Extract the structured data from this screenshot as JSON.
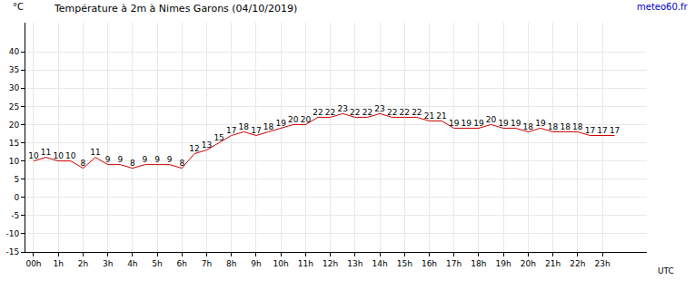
{
  "chart_data": {
    "type": "line",
    "title": "Température à 2m à Nimes Garons (04/10/2019)",
    "y_label": "°C",
    "x_label": "UTC",
    "source": "meteo60.fr",
    "x": [
      0,
      0.5,
      1,
      1.5,
      2,
      2.5,
      3,
      3.5,
      4,
      4.5,
      5,
      5.5,
      6,
      6.5,
      7,
      7.5,
      8,
      8.5,
      9,
      9.5,
      10,
      10.5,
      11,
      11.5,
      12,
      12.5,
      13,
      13.5,
      14,
      14.5,
      15,
      15.5,
      16,
      16.5,
      17,
      17.5,
      18,
      18.5,
      19,
      19.5,
      20,
      20.5,
      21,
      21.5,
      22,
      22.5,
      23,
      23.5
    ],
    "values": [
      10,
      11,
      10,
      10,
      8,
      11,
      9,
      9,
      8,
      9,
      9,
      9,
      8,
      12,
      13,
      15,
      17,
      18,
      17,
      18,
      19,
      20,
      20,
      22,
      22,
      23,
      22,
      22,
      23,
      22,
      22,
      22,
      21,
      21,
      19,
      19,
      19,
      20,
      19,
      19,
      18,
      19,
      18,
      18,
      18,
      17,
      17,
      17
    ],
    "color": "#cc0000",
    "data_labels": true,
    "grid": true,
    "xlim": [
      -0.33,
      24.8
    ],
    "xticks": [
      {
        "value": 0,
        "label": "00h"
      },
      {
        "value": 1,
        "label": "1h"
      },
      {
        "value": 2,
        "label": "2h"
      },
      {
        "value": 3,
        "label": "3h"
      },
      {
        "value": 4,
        "label": "4h"
      },
      {
        "value": 5,
        "label": "5h"
      },
      {
        "value": 6,
        "label": "6h"
      },
      {
        "value": 7,
        "label": "7h"
      },
      {
        "value": 8,
        "label": "8h"
      },
      {
        "value": 9,
        "label": "9h"
      },
      {
        "value": 10,
        "label": "10h"
      },
      {
        "value": 11,
        "label": "11h"
      },
      {
        "value": 12,
        "label": "12h"
      },
      {
        "value": 13,
        "label": "13h"
      },
      {
        "value": 14,
        "label": "14h"
      },
      {
        "value": 15,
        "label": "15h"
      },
      {
        "value": 16,
        "label": "16h"
      },
      {
        "value": 17,
        "label": "17h"
      },
      {
        "value": 18,
        "label": "18h"
      },
      {
        "value": 19,
        "label": "19h"
      },
      {
        "value": 20,
        "label": "20h"
      },
      {
        "value": 21,
        "label": "21h"
      },
      {
        "value": 22,
        "label": "22h"
      },
      {
        "value": 23,
        "label": "23h"
      }
    ],
    "ylim": [
      -15,
      48
    ],
    "yticks": [
      -15,
      -10,
      -5,
      0,
      5,
      10,
      15,
      20,
      25,
      30,
      35,
      40
    ]
  }
}
